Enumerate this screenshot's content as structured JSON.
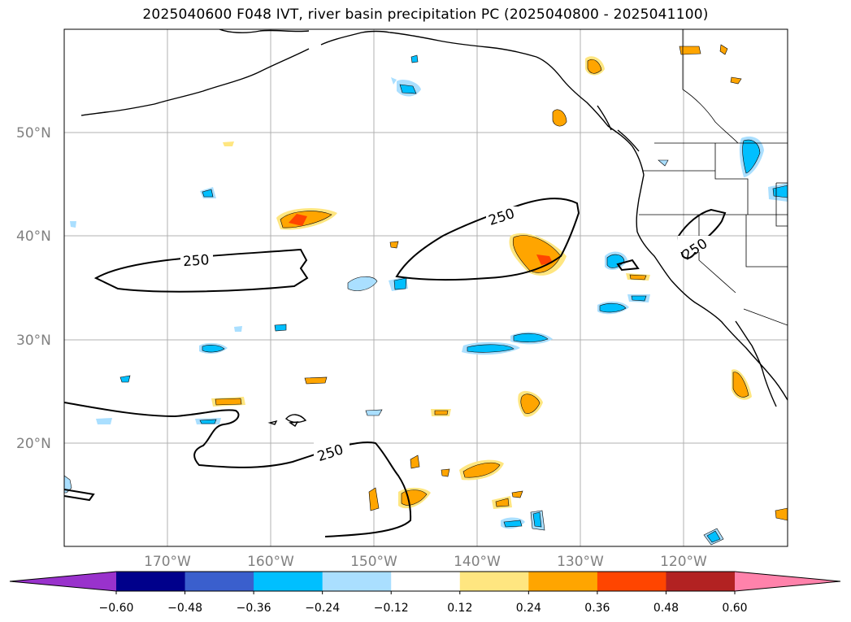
{
  "title": "2025040600 F048 IVT, river basin precipitation PC (2025040800 - 2025041100)",
  "map": {
    "lat_labels": [
      "50°N",
      "40°N",
      "30°N",
      "20°N"
    ],
    "lon_labels": [
      "170°W",
      "160°W",
      "150°W",
      "140°W",
      "130°W",
      "120°W"
    ],
    "contour_labels": [
      "250",
      "250",
      "250",
      "250"
    ],
    "colors": {
      "pos_012": "#ffe680",
      "pos_024": "#ffa500",
      "pos_036": "#ff4500",
      "neg_012": "#aadfff",
      "neg_024": "#00bfff"
    }
  },
  "colorbar": {
    "ticks": [
      "−0.60",
      "−0.48",
      "−0.36",
      "−0.24",
      "−0.12",
      "0.12",
      "0.24",
      "0.36",
      "0.48",
      "0.60"
    ],
    "colors": [
      "#9932cc",
      "#00008b",
      "#3a5fcd",
      "#00bfff",
      "#aadfff",
      "#ffffff",
      "#ffe680",
      "#ffa500",
      "#ff4500",
      "#b22222",
      "#ff82ab"
    ]
  }
}
